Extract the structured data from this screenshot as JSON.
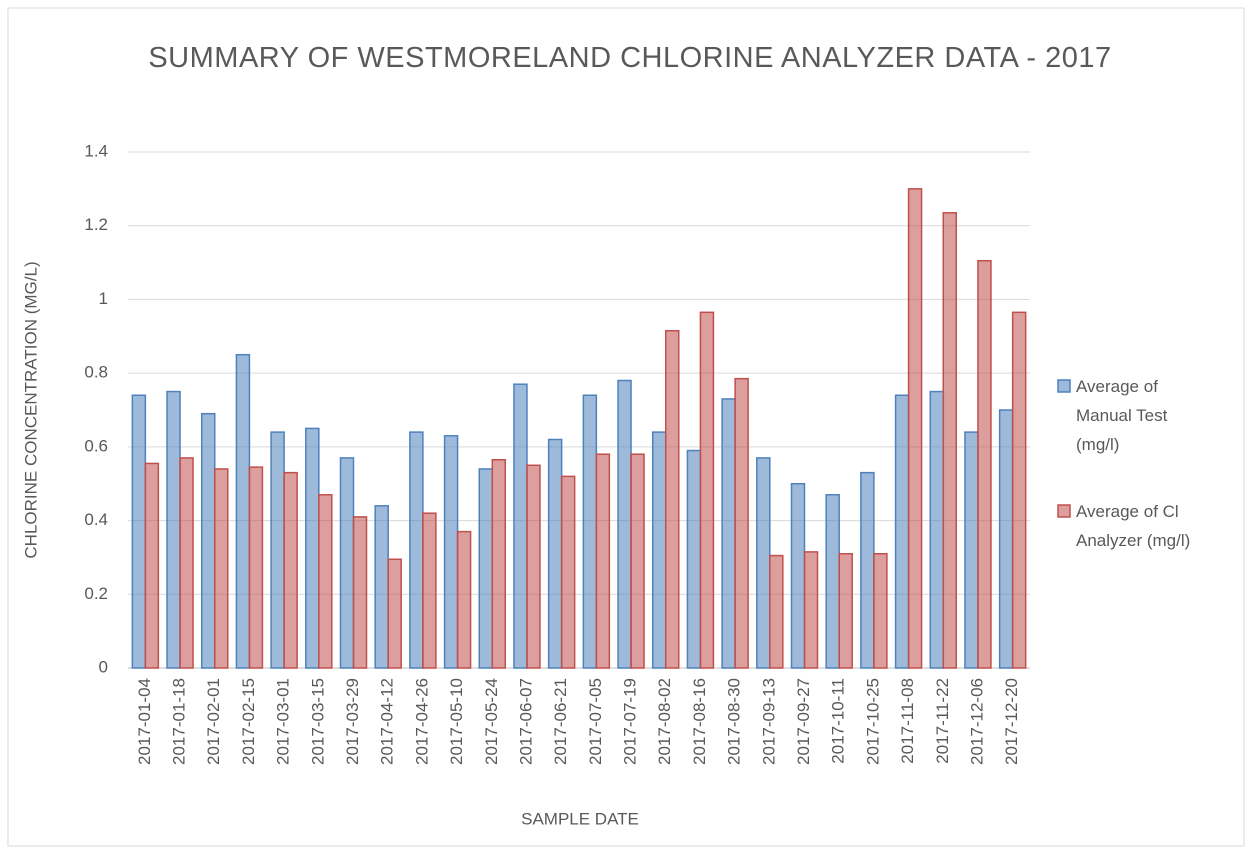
{
  "chart_data": {
    "type": "bar",
    "title": "SUMMARY OF WESTMORELAND  CHLORINE  ANALYZER DATA - 2017",
    "x_label": "SAMPLE DATE",
    "y_label": "CHLORINE CONCENTRATION (MG/L)",
    "categories": [
      "2017-01-04",
      "2017-01-18",
      "2017-02-01",
      "2017-02-15",
      "2017-03-01",
      "2017-03-15",
      "2017-03-29",
      "2017-04-12",
      "2017-04-26",
      "2017-05-10",
      "2017-05-24",
      "2017-06-07",
      "2017-06-21",
      "2017-07-05",
      "2017-07-19",
      "2017-08-02",
      "2017-08-16",
      "2017-08-30",
      "2017-09-13",
      "2017-09-27",
      "2017-10-11",
      "2017-10-25",
      "2017-11-08",
      "2017-11-22",
      "2017-12-06",
      "2017-12-20"
    ],
    "series": [
      {
        "name": "Average of Manual Test (mg/l)",
        "color": "#4f81bd",
        "values": [
          0.74,
          0.75,
          0.69,
          0.85,
          0.64,
          0.65,
          0.57,
          0.44,
          0.64,
          0.63,
          0.54,
          0.77,
          0.62,
          0.74,
          0.78,
          0.64,
          0.59,
          0.73,
          0.57,
          0.5,
          0.47,
          0.53,
          0.74,
          0.75,
          0.64,
          0.7
        ]
      },
      {
        "name": "Average of Cl Analyzer (mg/l)",
        "color": "#c0504d",
        "values": [
          0.555,
          0.57,
          0.54,
          0.545,
          0.53,
          0.47,
          0.41,
          0.295,
          0.42,
          0.37,
          0.565,
          0.55,
          0.52,
          0.58,
          0.58,
          0.915,
          0.965,
          0.785,
          0.305,
          0.315,
          0.31,
          0.31,
          1.3,
          1.235,
          1.105,
          0.965
        ]
      }
    ],
    "ylim": [
      0,
      1.4
    ],
    "yticks": [
      0,
      0.2,
      0.4,
      0.6,
      0.8,
      1,
      1.2,
      1.4
    ],
    "grid": true,
    "legend": "right"
  }
}
